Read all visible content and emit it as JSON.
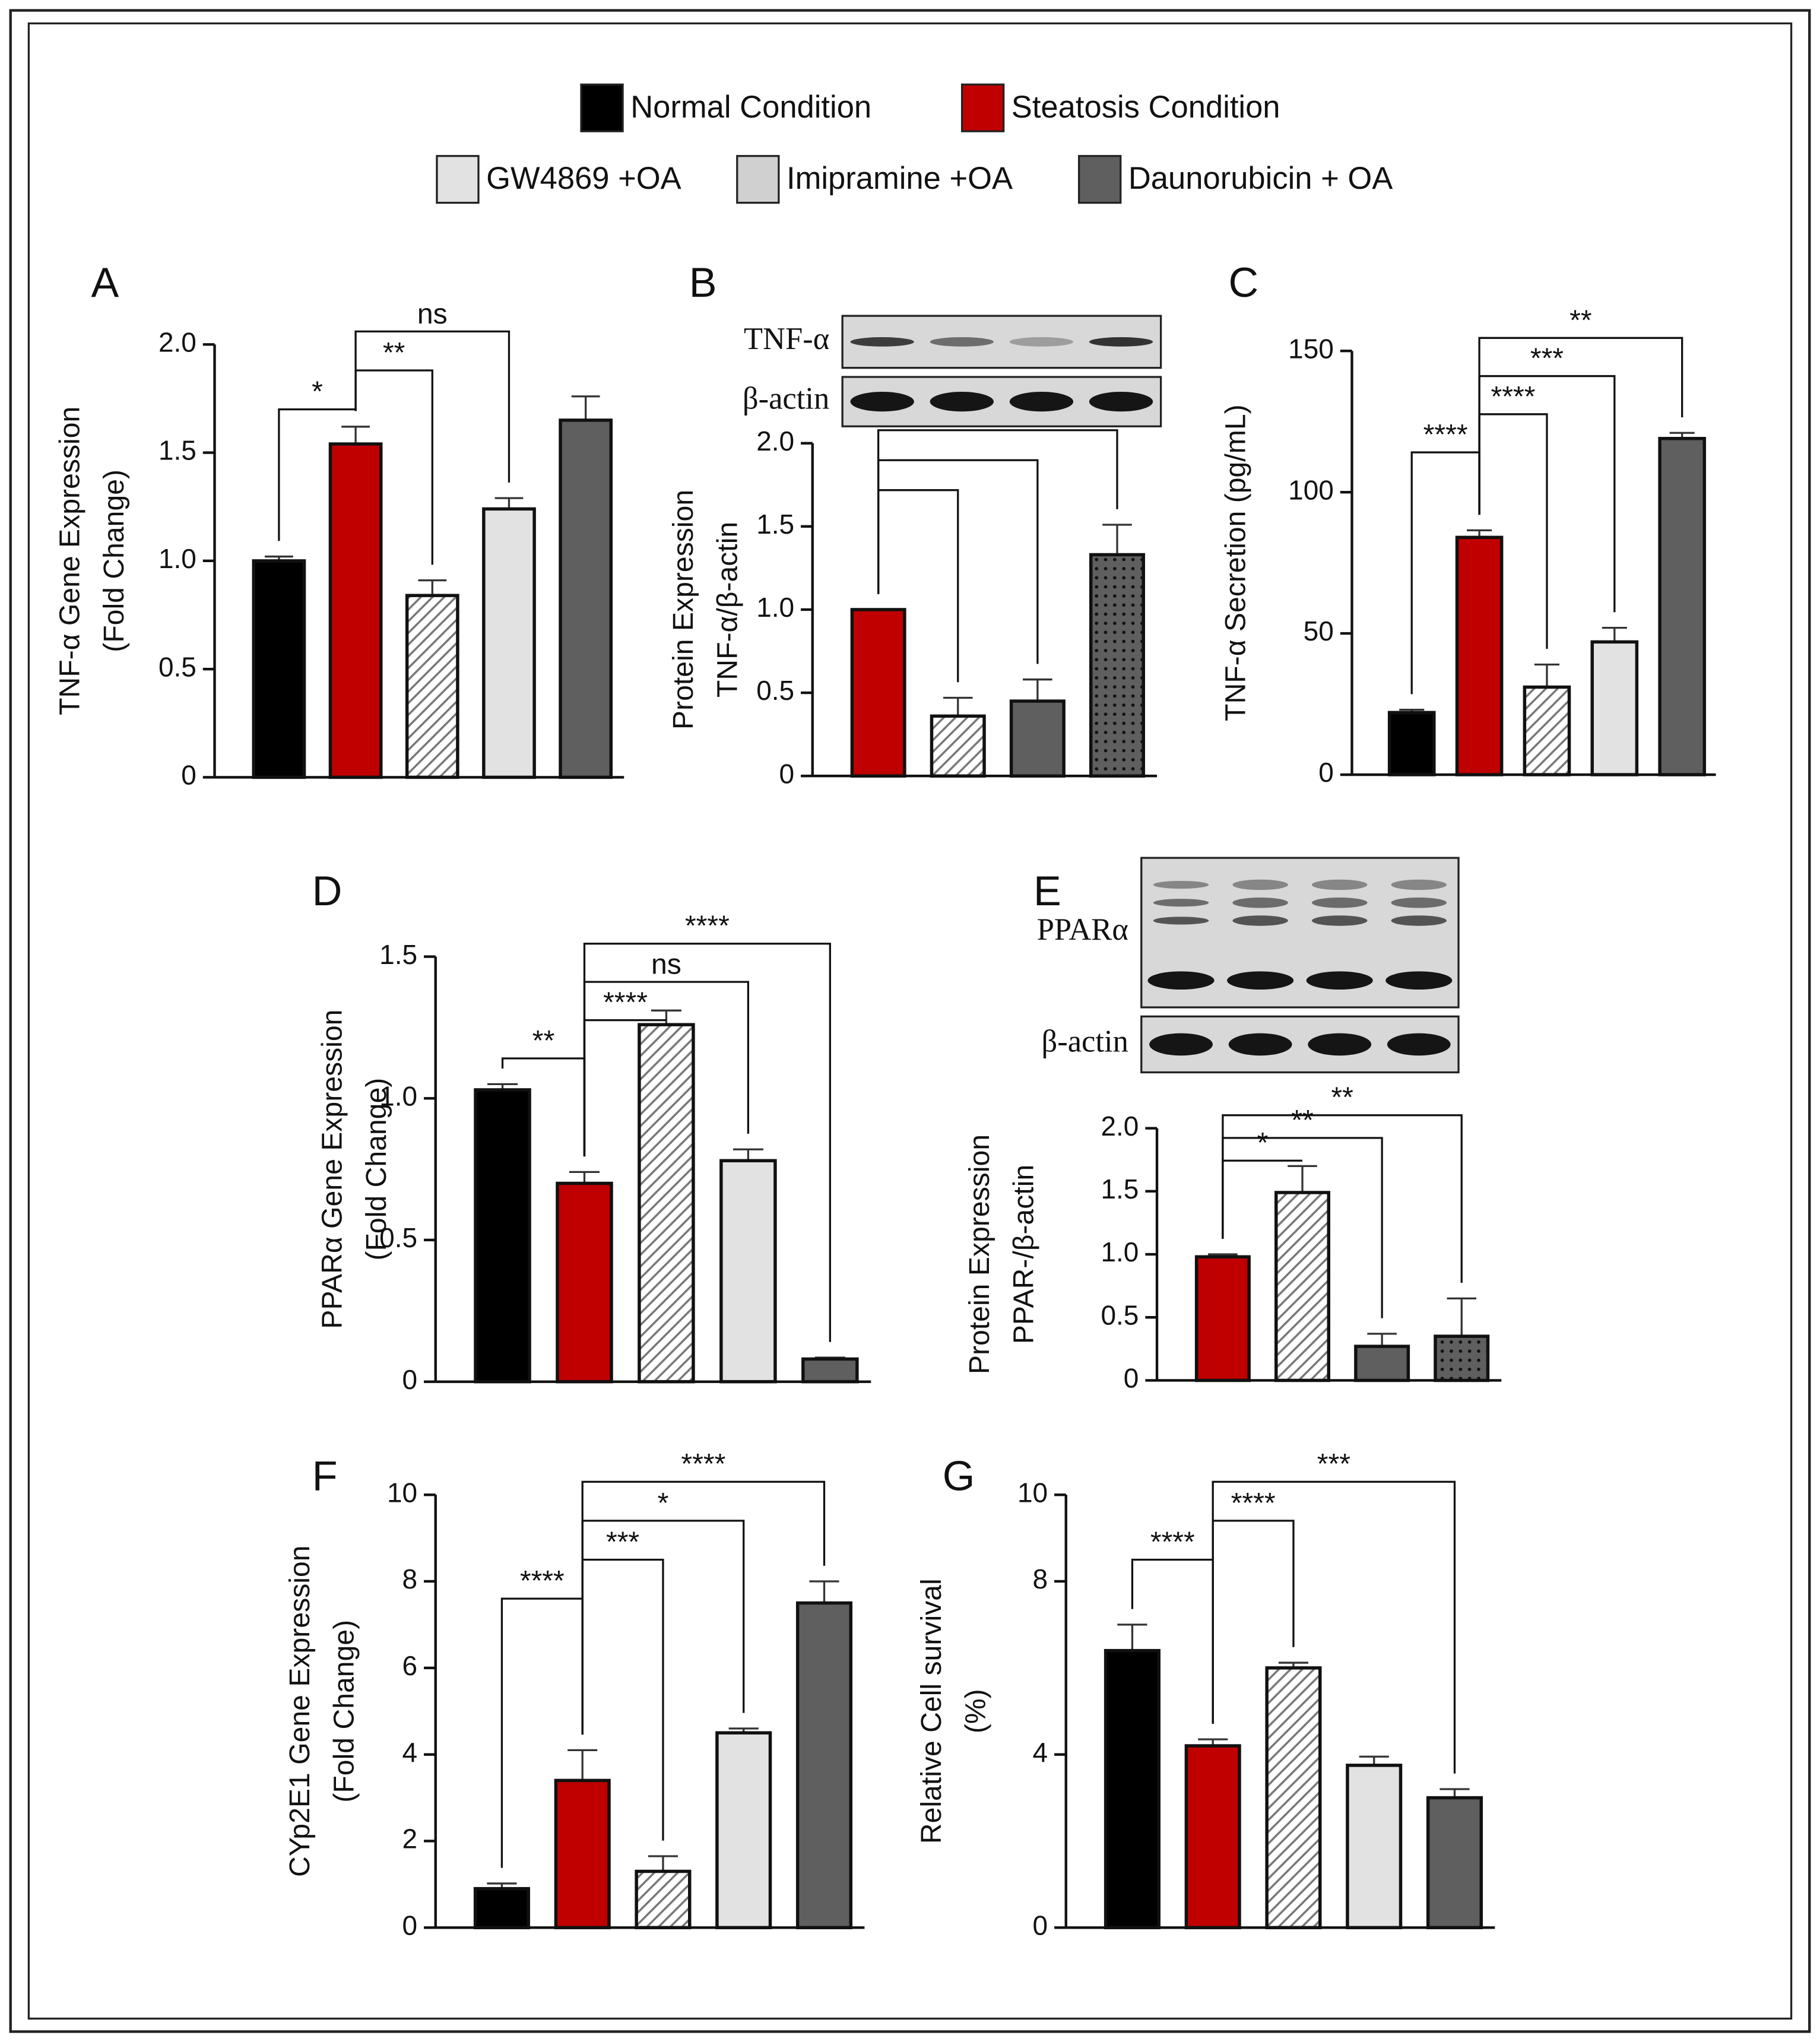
{
  "legend": [
    {
      "name": "Normal Condition",
      "color": "#000000"
    },
    {
      "name": "Steatosis Condition",
      "color": "#c00000"
    },
    {
      "name": "GW4869 +OA",
      "color": "#e2e2e2"
    },
    {
      "name": "Imipramine +OA",
      "color": "#d0d0d0"
    },
    {
      "name": "Daunorubicin + OA",
      "color": "#5f5f5f"
    }
  ],
  "chart_data": [
    {
      "type": "bar",
      "panel": "A",
      "ylabel": [
        "TNF-α Gene Expression",
        "(Fold Change)"
      ],
      "categories": [
        null,
        null,
        null,
        null,
        null
      ],
      "values": [
        1.0,
        1.54,
        0.84,
        1.24,
        1.65
      ],
      "errors": [
        0.02,
        0.08,
        0.07,
        0.05,
        0.11
      ],
      "colors": [
        "#000000",
        "#c00000",
        "#777777",
        "#e2e2e2",
        "#5f5f5f"
      ],
      "patterns": [
        "solid",
        "solid",
        "hatch",
        "solid",
        "solid"
      ],
      "ylim": [
        0,
        2
      ],
      "yticks": [
        0,
        {
          "value": 0.5,
          "label": "0.5"
        },
        {
          "value": 1,
          "label": "1.0"
        },
        {
          "value": 1.5,
          "label": "1.5"
        },
        {
          "value": 2,
          "label": "2.0"
        }
      ],
      "brackets": [
        {
          "from": 0,
          "to": 1,
          "label": "*"
        },
        {
          "from": 1,
          "to": 2,
          "label": "**"
        },
        {
          "from": 1,
          "to": 3,
          "label": "ns"
        }
      ]
    },
    {
      "type": "bar",
      "panel": "B",
      "ylabel": [
        "Protein Expression",
        "TNF-α/β-actin"
      ],
      "blot": [
        "TNF-α",
        "β-actin"
      ],
      "categories": [
        null,
        null,
        null,
        null
      ],
      "values": [
        1.0,
        0.36,
        0.45,
        1.33
      ],
      "errors": [
        0,
        0.11,
        0.13,
        0.18
      ],
      "colors": [
        "#c00000",
        "#777777",
        "#5f5f5f",
        "#5f5f5f"
      ],
      "patterns": [
        "solid",
        "hatch",
        "solid",
        "dots"
      ],
      "ylim": [
        0,
        2
      ],
      "yticks": [
        0,
        {
          "value": 0.5,
          "label": "0.5"
        },
        {
          "value": 1,
          "label": "1.0"
        },
        {
          "value": 1.5,
          "label": "1.5"
        },
        {
          "value": 2,
          "label": "2.0"
        }
      ],
      "brackets": [
        {
          "from": 0,
          "to": 1
        },
        {
          "from": 0,
          "to": 2
        },
        {
          "from": 0,
          "to": 3
        }
      ]
    },
    {
      "type": "bar",
      "panel": "C",
      "ylabel": [
        "TNF-α Secretion (pg/mL)"
      ],
      "categories": [
        null,
        null,
        null,
        null,
        null
      ],
      "values": [
        22,
        84,
        31,
        47,
        119
      ],
      "errors": [
        1,
        2.5,
        8,
        5,
        2
      ],
      "colors": [
        "#000000",
        "#c00000",
        "#777777",
        "#e2e2e2",
        "#5f5f5f"
      ],
      "patterns": [
        "solid",
        "solid",
        "hatch",
        "solid",
        "solid"
      ],
      "ylim": [
        0,
        150
      ],
      "yticks": [
        0,
        50,
        100,
        150
      ],
      "brackets": [
        {
          "from": 0,
          "to": 1,
          "label": "****"
        },
        {
          "from": 1,
          "to": 2,
          "label": "****"
        },
        {
          "from": 1,
          "to": 3,
          "label": "***"
        },
        {
          "from": 1,
          "to": 4,
          "label": "**"
        }
      ]
    },
    {
      "type": "bar",
      "panel": "D",
      "ylabel": [
        "PPARα Gene Expression",
        "(Fold Change)"
      ],
      "categories": [
        null,
        null,
        null,
        null,
        null
      ],
      "values": [
        1.03,
        0.7,
        1.26,
        0.78,
        0.08
      ],
      "errors": [
        0.02,
        0.04,
        0.05,
        0.04,
        0.005
      ],
      "colors": [
        "#000000",
        "#c00000",
        "#777777",
        "#e2e2e2",
        "#5f5f5f"
      ],
      "patterns": [
        "solid",
        "solid",
        "hatch",
        "solid",
        "solid"
      ],
      "ylim": [
        0,
        1.5
      ],
      "yticks": [
        0,
        0.5,
        {
          "value": 1,
          "label": "1.0"
        },
        1.5
      ],
      "brackets": [
        {
          "from": 0,
          "to": 1,
          "label": "**"
        },
        {
          "from": 1,
          "to": 2,
          "label": "****"
        },
        {
          "from": 1,
          "to": 3,
          "label": "ns"
        },
        {
          "from": 1,
          "to": 4,
          "label": "****"
        }
      ]
    },
    {
      "type": "bar",
      "panel": "E",
      "ylabel": [
        "Protein Expression",
        "PPAR-/β-actin"
      ],
      "blot": [
        "PPARα",
        "β-actin"
      ],
      "categories": [
        null,
        null,
        null,
        null
      ],
      "values": [
        0.98,
        1.49,
        0.27,
        0.35
      ],
      "errors": [
        0.02,
        0.21,
        0.1,
        0.3
      ],
      "colors": [
        "#c00000",
        "#777777",
        "#5f5f5f",
        "#5f5f5f"
      ],
      "patterns": [
        "solid",
        "hatch",
        "solid",
        "dots"
      ],
      "ylim": [
        0,
        2
      ],
      "yticks": [
        0,
        {
          "value": 0.5,
          "label": "0.5"
        },
        {
          "value": 1,
          "label": "1.0"
        },
        {
          "value": 1.5,
          "label": "1.5"
        },
        {
          "value": 2,
          "label": "2.0"
        }
      ],
      "brackets": [
        {
          "from": 0,
          "to": 1,
          "label": "*"
        },
        {
          "from": 0,
          "to": 2,
          "label": "**"
        },
        {
          "from": 0,
          "to": 3,
          "label": "**"
        }
      ]
    },
    {
      "type": "bar",
      "panel": "F",
      "ylabel": [
        "CYp2E1 Gene Expression",
        "(Fold Change)"
      ],
      "categories": [
        null,
        null,
        null,
        null,
        null
      ],
      "values": [
        0.9,
        3.4,
        1.3,
        4.5,
        7.5
      ],
      "errors": [
        0.12,
        0.7,
        0.35,
        0.1,
        0.5
      ],
      "colors": [
        "#000000",
        "#c00000",
        "#777777",
        "#e2e2e2",
        "#5f5f5f"
      ],
      "patterns": [
        "solid",
        "solid",
        "hatch",
        "solid",
        "solid"
      ],
      "ylim": [
        0,
        10
      ],
      "yticks": [
        0,
        2,
        4,
        6,
        8,
        10
      ],
      "brackets": [
        {
          "from": 0,
          "to": 1,
          "label": "****"
        },
        {
          "from": 1,
          "to": 2,
          "label": "***"
        },
        {
          "from": 1,
          "to": 3,
          "label": "*"
        },
        {
          "from": 1,
          "to": 4,
          "label": "****"
        }
      ]
    },
    {
      "type": "bar",
      "panel": "G",
      "ylabel": [
        "Relative Cell survival",
        "(%)"
      ],
      "categories": [
        null,
        null,
        null,
        null,
        null
      ],
      "values": [
        6.4,
        4.2,
        6.0,
        3.75,
        3.0
      ],
      "errors": [
        0.6,
        0.15,
        0.12,
        0.2,
        0.2
      ],
      "colors": [
        "#000000",
        "#c00000",
        "#777777",
        "#e2e2e2",
        "#5f5f5f"
      ],
      "patterns": [
        "solid",
        "solid",
        "hatch",
        "solid",
        "solid"
      ],
      "ylim": [
        0,
        10
      ],
      "yticks": [
        0,
        4,
        8,
        10
      ],
      "brackets": [
        {
          "from": 0,
          "to": 1,
          "label": "****"
        },
        {
          "from": 1,
          "to": 2,
          "label": "****"
        },
        {
          "from": 1,
          "to": 4,
          "label": "***"
        }
      ]
    }
  ]
}
